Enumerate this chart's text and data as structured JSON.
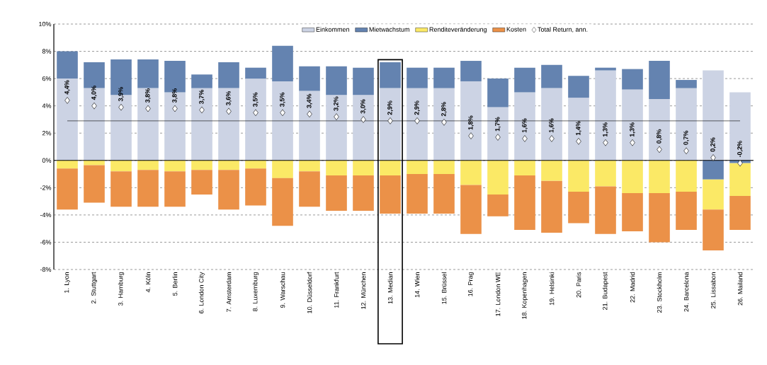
{
  "chart_data": {
    "type": "bar",
    "stacked": true,
    "categories": [
      "1. Lyon",
      "2. Stuttgart",
      "3. Hamburg",
      "4. Köln",
      "5. Berlin",
      "6. London City",
      "7. Amsterdam",
      "8. Luxemburg",
      "9. Warschau",
      "10. Düsseldorf",
      "11. Frankfurt",
      "12. München",
      "13. Median",
      "14. Wien",
      "15. Brüssel",
      "16. Prag",
      "17. London WE",
      "18. Kopenhagen",
      "19. Helsinki",
      "20. Paris",
      "21. Budapest",
      "22. Madrid",
      "23. Stockholm",
      "24. Barcelona",
      "25. Lissabon",
      "26. Mailand"
    ],
    "series": [
      {
        "name": "Einkommen",
        "color": "#ccd3e4",
        "values": [
          6.0,
          5.3,
          4.8,
          5.3,
          5.0,
          5.3,
          5.3,
          6.0,
          5.8,
          5.1,
          4.8,
          4.8,
          5.3,
          5.3,
          5.3,
          5.8,
          3.9,
          5.0,
          5.3,
          4.6,
          6.6,
          5.2,
          4.5,
          5.3,
          6.6,
          5.0
        ]
      },
      {
        "name": "Mietwachstum",
        "color": "#6483b0",
        "values": [
          2.0,
          1.9,
          2.6,
          2.1,
          2.3,
          1.0,
          1.9,
          0.8,
          2.6,
          1.8,
          2.1,
          2.0,
          1.9,
          1.5,
          1.5,
          1.5,
          2.1,
          1.8,
          1.7,
          1.6,
          0.2,
          1.5,
          2.8,
          0.6,
          -1.4,
          -0.2
        ]
      },
      {
        "name": "Renditeveränderung",
        "color": "#fbe966",
        "values": [
          -0.6,
          -0.35,
          -0.8,
          -0.7,
          -0.8,
          -0.7,
          -0.7,
          -0.6,
          -1.3,
          -0.8,
          -1.1,
          -1.1,
          -1.1,
          -1.0,
          -1.0,
          -1.8,
          -2.5,
          -1.1,
          -1.5,
          -2.3,
          -1.9,
          -2.4,
          -2.4,
          -2.3,
          -2.2,
          -2.4
        ]
      },
      {
        "name": "Kosten",
        "color": "#eb9148",
        "values": [
          -3.0,
          -2.75,
          -2.6,
          -2.7,
          -2.6,
          -1.8,
          -2.9,
          -2.7,
          -3.5,
          -2.6,
          -2.6,
          -2.6,
          -2.8,
          -2.9,
          -2.9,
          -3.6,
          -1.6,
          -4.0,
          -3.8,
          -2.3,
          -3.5,
          -2.8,
          -3.6,
          -2.8,
          -3.0,
          -2.5
        ]
      },
      {
        "name": "Total Return, ann.",
        "type": "scatter",
        "color": "#ffffff",
        "marker": "diamond",
        "values": [
          4.4,
          4.0,
          3.9,
          3.8,
          3.8,
          3.7,
          3.6,
          3.5,
          3.5,
          3.4,
          3.2,
          3.0,
          2.9,
          2.9,
          2.8,
          1.8,
          1.7,
          1.6,
          1.6,
          1.4,
          1.3,
          1.3,
          0.8,
          0.7,
          0.2,
          -0.2
        ],
        "value_labels": [
          "4,4%",
          "4,0%",
          "3,9%",
          "3,8%",
          "3,8%",
          "3,7%",
          "3,6%",
          "3,5%",
          "3,5%",
          "3,4%",
          "3,2%",
          "3,0%",
          "2,9%",
          "2,9%",
          "2,8%",
          "1,8%",
          "1,7%",
          "1,6%",
          "1,6%",
          "1,4%",
          "1,3%",
          "1,3%",
          "0,8%",
          "0,7%",
          "0,2%",
          "-0,2%"
        ]
      }
    ],
    "ylim": [
      -8,
      10
    ],
    "yticks": [
      {
        "value": -8,
        "label": "-8%"
      },
      {
        "value": -6,
        "label": "-6%"
      },
      {
        "value": -4,
        "label": "-4%"
      },
      {
        "value": -2,
        "label": "-2%"
      },
      {
        "value": 0,
        "label": "0%"
      },
      {
        "value": 2,
        "label": "2%"
      },
      {
        "value": 4,
        "label": "4%"
      },
      {
        "value": 6,
        "label": "6%"
      },
      {
        "value": 8,
        "label": "8%"
      },
      {
        "value": 10,
        "label": "10%"
      }
    ],
    "ref_lines": [
      {
        "axis": "y",
        "value": 2.9,
        "color": "#000000"
      }
    ],
    "grid": "y",
    "legend": "top"
  }
}
